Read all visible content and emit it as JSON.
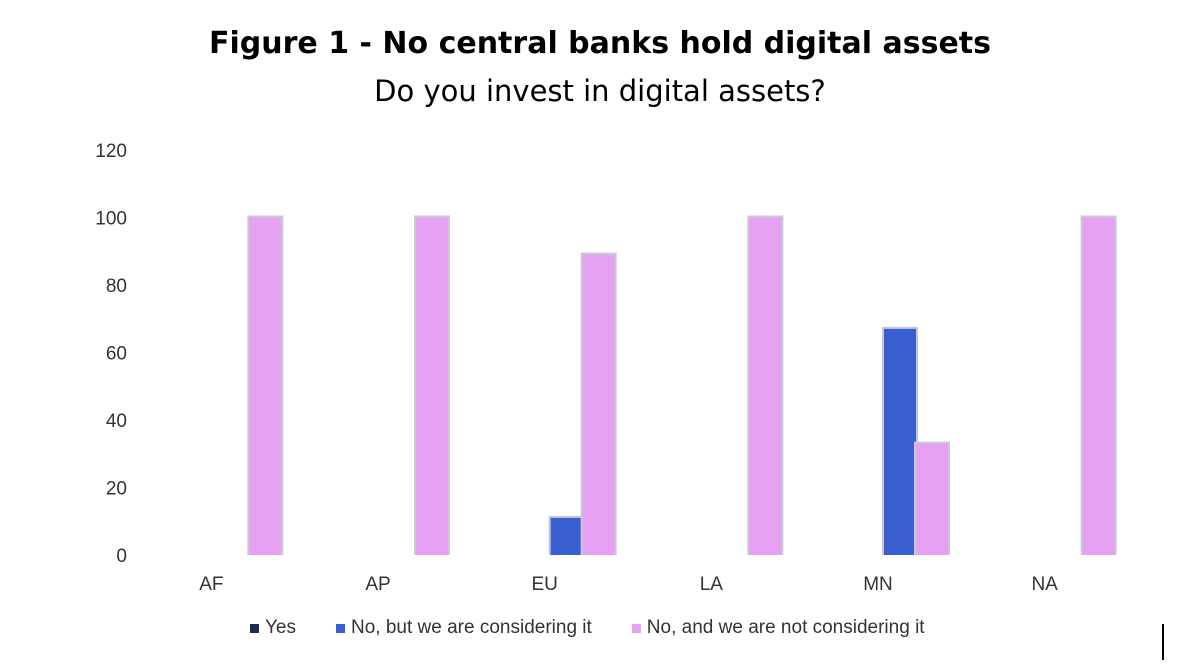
{
  "chart_data": {
    "type": "bar",
    "title": "Figure 1 - No central banks hold digital assets",
    "subtitle": "Do you invest in digital assets?",
    "categories": [
      "AF",
      "AP",
      "EU",
      "LA",
      "MN",
      "NA"
    ],
    "series": [
      {
        "name": "Yes",
        "color": "#1f2a52",
        "values": [
          0,
          0,
          0,
          0,
          0,
          0
        ]
      },
      {
        "name": "No, but we are considering it",
        "color": "#3a5fd0",
        "values": [
          0,
          0,
          11,
          0,
          67,
          0
        ]
      },
      {
        "name": "No, and we are not considering it",
        "color": "#e6a1f3",
        "values": [
          100,
          100,
          89,
          100,
          33,
          100
        ]
      }
    ],
    "ylim": [
      0,
      120
    ],
    "yticks": [
      "0",
      "20",
      "40",
      "60",
      "80",
      "100",
      "120"
    ],
    "grid": false,
    "legend": "bottom"
  }
}
